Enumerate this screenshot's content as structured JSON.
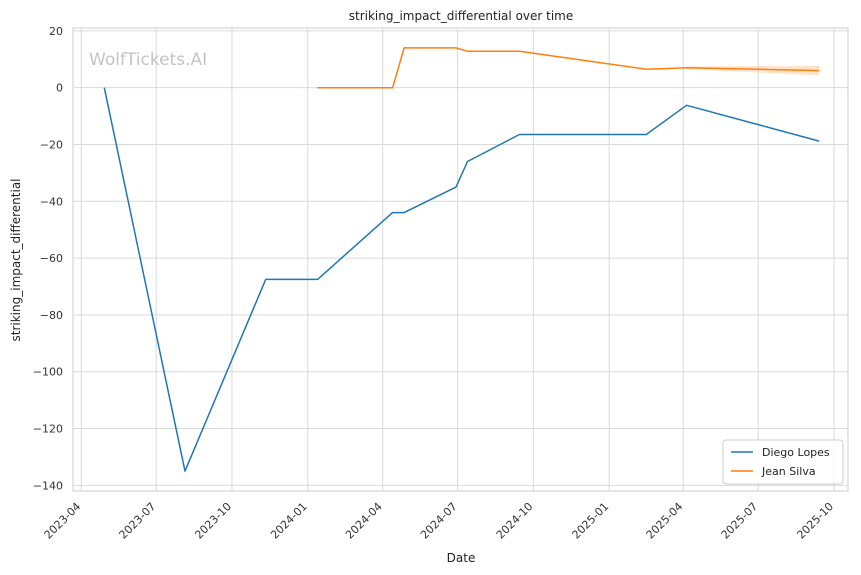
{
  "chart_data": {
    "type": "line",
    "title": "striking_impact_differential over time",
    "xlabel": "Date",
    "ylabel": "striking_impact_differential",
    "watermark": "WolfTickets.AI",
    "ylim": [
      -142,
      21
    ],
    "xlim": [
      "2023-03-22",
      "2025-10-18"
    ],
    "yticks": [
      20,
      0,
      -20,
      -40,
      -60,
      -80,
      -100,
      -120,
      -140
    ],
    "ytick_labels": [
      "20",
      "0",
      "−20",
      "−40",
      "−60",
      "−80",
      "−100",
      "−120",
      "−140"
    ],
    "xticks": [
      "2023-04-01",
      "2023-07-01",
      "2023-10-01",
      "2024-01-01",
      "2024-04-01",
      "2024-07-01",
      "2024-10-01",
      "2025-01-01",
      "2025-04-01",
      "2025-07-01",
      "2025-10-01"
    ],
    "xtick_labels": [
      "2023-04",
      "2023-07",
      "2023-10",
      "2024-01",
      "2024-04",
      "2024-07",
      "2024-10",
      "2025-01",
      "2025-04",
      "2025-07",
      "2025-10"
    ],
    "grid": true,
    "legend_position": "bottom-right",
    "series": [
      {
        "name": "Diego Lopes",
        "color": "#1f77b4",
        "points": [
          {
            "x": "2023-04-29",
            "y": 0
          },
          {
            "x": "2023-08-05",
            "y": -135
          },
          {
            "x": "2023-11-11",
            "y": -67.5
          },
          {
            "x": "2024-01-13",
            "y": -67.5
          },
          {
            "x": "2024-04-13",
            "y": -44
          },
          {
            "x": "2024-04-27",
            "y": -44
          },
          {
            "x": "2024-06-29",
            "y": -35
          },
          {
            "x": "2024-07-13",
            "y": -26
          },
          {
            "x": "2024-09-14",
            "y": -16.5
          },
          {
            "x": "2025-02-15",
            "y": -16.5
          },
          {
            "x": "2025-04-05",
            "y": -6.2
          },
          {
            "x": "2025-09-13",
            "y": -18.8
          }
        ]
      },
      {
        "name": "Jean Silva",
        "color": "#ff7f0e",
        "points": [
          {
            "x": "2024-01-13",
            "y": 0
          },
          {
            "x": "2024-04-13",
            "y": 0
          },
          {
            "x": "2024-04-27",
            "y": 14
          },
          {
            "x": "2024-06-29",
            "y": 14
          },
          {
            "x": "2024-07-13",
            "y": 12.8
          },
          {
            "x": "2024-09-14",
            "y": 12.8
          },
          {
            "x": "2025-02-15",
            "y": 6.5
          },
          {
            "x": "2025-04-05",
            "y": 7
          },
          {
            "x": "2025-09-13",
            "y": 6
          }
        ],
        "band": [
          {
            "x": "2025-04-05",
            "lo": 6.5,
            "hi": 7.5
          },
          {
            "x": "2025-09-13",
            "lo": 4.3,
            "hi": 7.7
          }
        ]
      }
    ]
  }
}
